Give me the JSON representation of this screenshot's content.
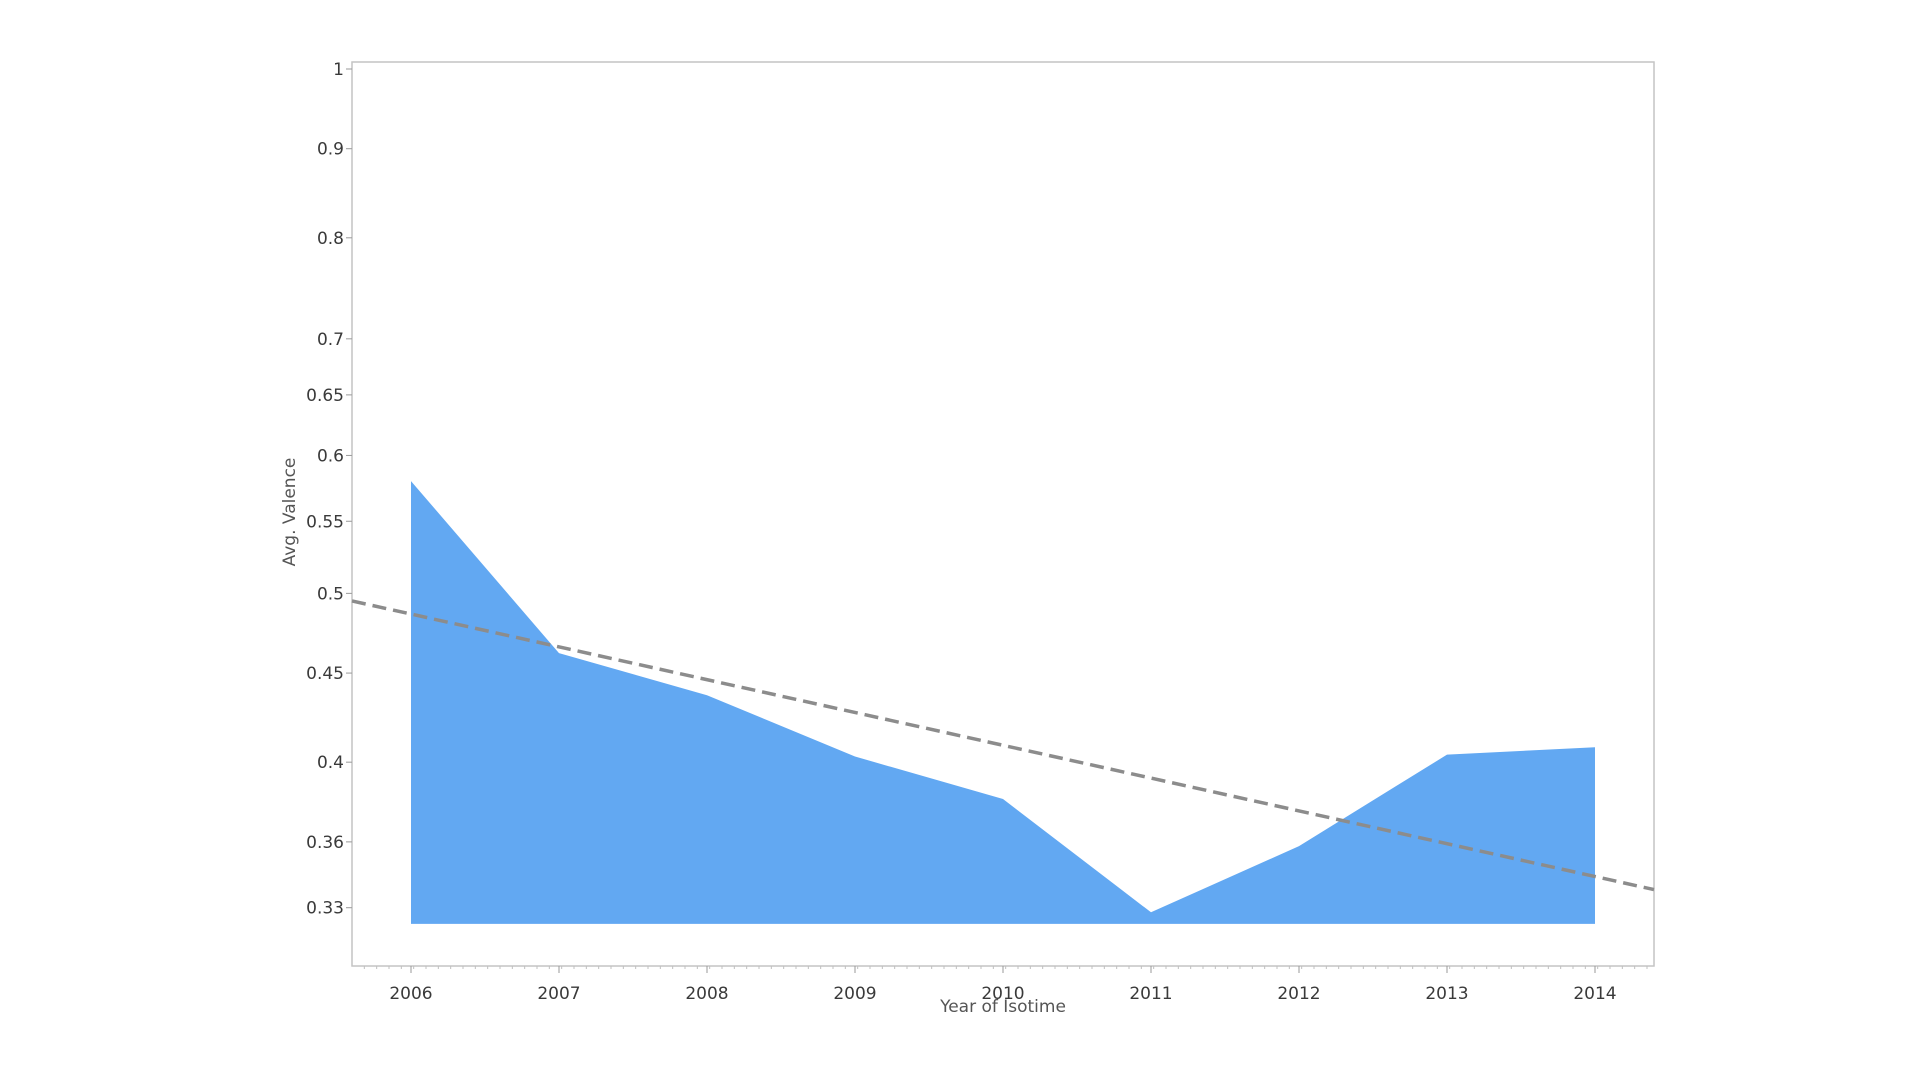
{
  "chart_data": {
    "type": "area",
    "title": "",
    "xlabel": "Year of Isotime",
    "ylabel": "Avg. Valence",
    "x": [
      "2006",
      "2007",
      "2008",
      "2009",
      "2010",
      "2011",
      "2012",
      "2013",
      "2014"
    ],
    "series": [
      {
        "values": [
          0.58,
          0.462,
          0.437,
          0.403,
          0.381,
          0.328,
          0.358,
          0.404,
          0.408
        ],
        "color": "#62a8f2"
      }
    ],
    "trend_line": {
      "style": "dashed",
      "color": "#8c8c8c",
      "start": 0.495,
      "end": 0.338
    },
    "y_scale": "log",
    "ylim": [
      0.31,
      1.0
    ],
    "yticks": [
      {
        "value": 1,
        "label": "1"
      },
      {
        "value": 0.9,
        "label": "0.9"
      },
      {
        "value": 0.8,
        "label": "0.8"
      },
      {
        "value": 0.7,
        "label": "0.7"
      },
      {
        "value": 0.65,
        "label": "0.65"
      },
      {
        "value": 0.6,
        "label": "0.6"
      },
      {
        "value": 0.55,
        "label": "0.55"
      },
      {
        "value": 0.5,
        "label": "0.5"
      },
      {
        "value": 0.45,
        "label": "0.45"
      },
      {
        "value": 0.4,
        "label": "0.4"
      },
      {
        "value": 0.36,
        "label": "0.36"
      },
      {
        "value": 0.33,
        "label": "0.33"
      }
    ],
    "area_baseline": 0.323,
    "grid": false,
    "legend": "none"
  }
}
